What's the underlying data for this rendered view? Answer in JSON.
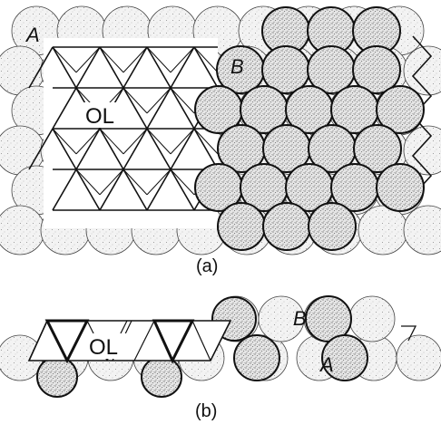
{
  "panels": {
    "a": {
      "caption": "(a)",
      "labels": {
        "layer_a": "A",
        "layer_b": "B",
        "octahedral_layer": "OL"
      }
    },
    "b": {
      "caption": "(b)",
      "labels": {
        "layer_a": "A",
        "layer_b": "B",
        "octahedral_layer": "OL"
      }
    }
  },
  "colors": {
    "background": "#ffffff",
    "stroke": "#111111",
    "light_sphere_fill": "#f3f3f3",
    "dark_sphere_fill": "#e2e2e2",
    "stipple": "#6a6a6a"
  }
}
